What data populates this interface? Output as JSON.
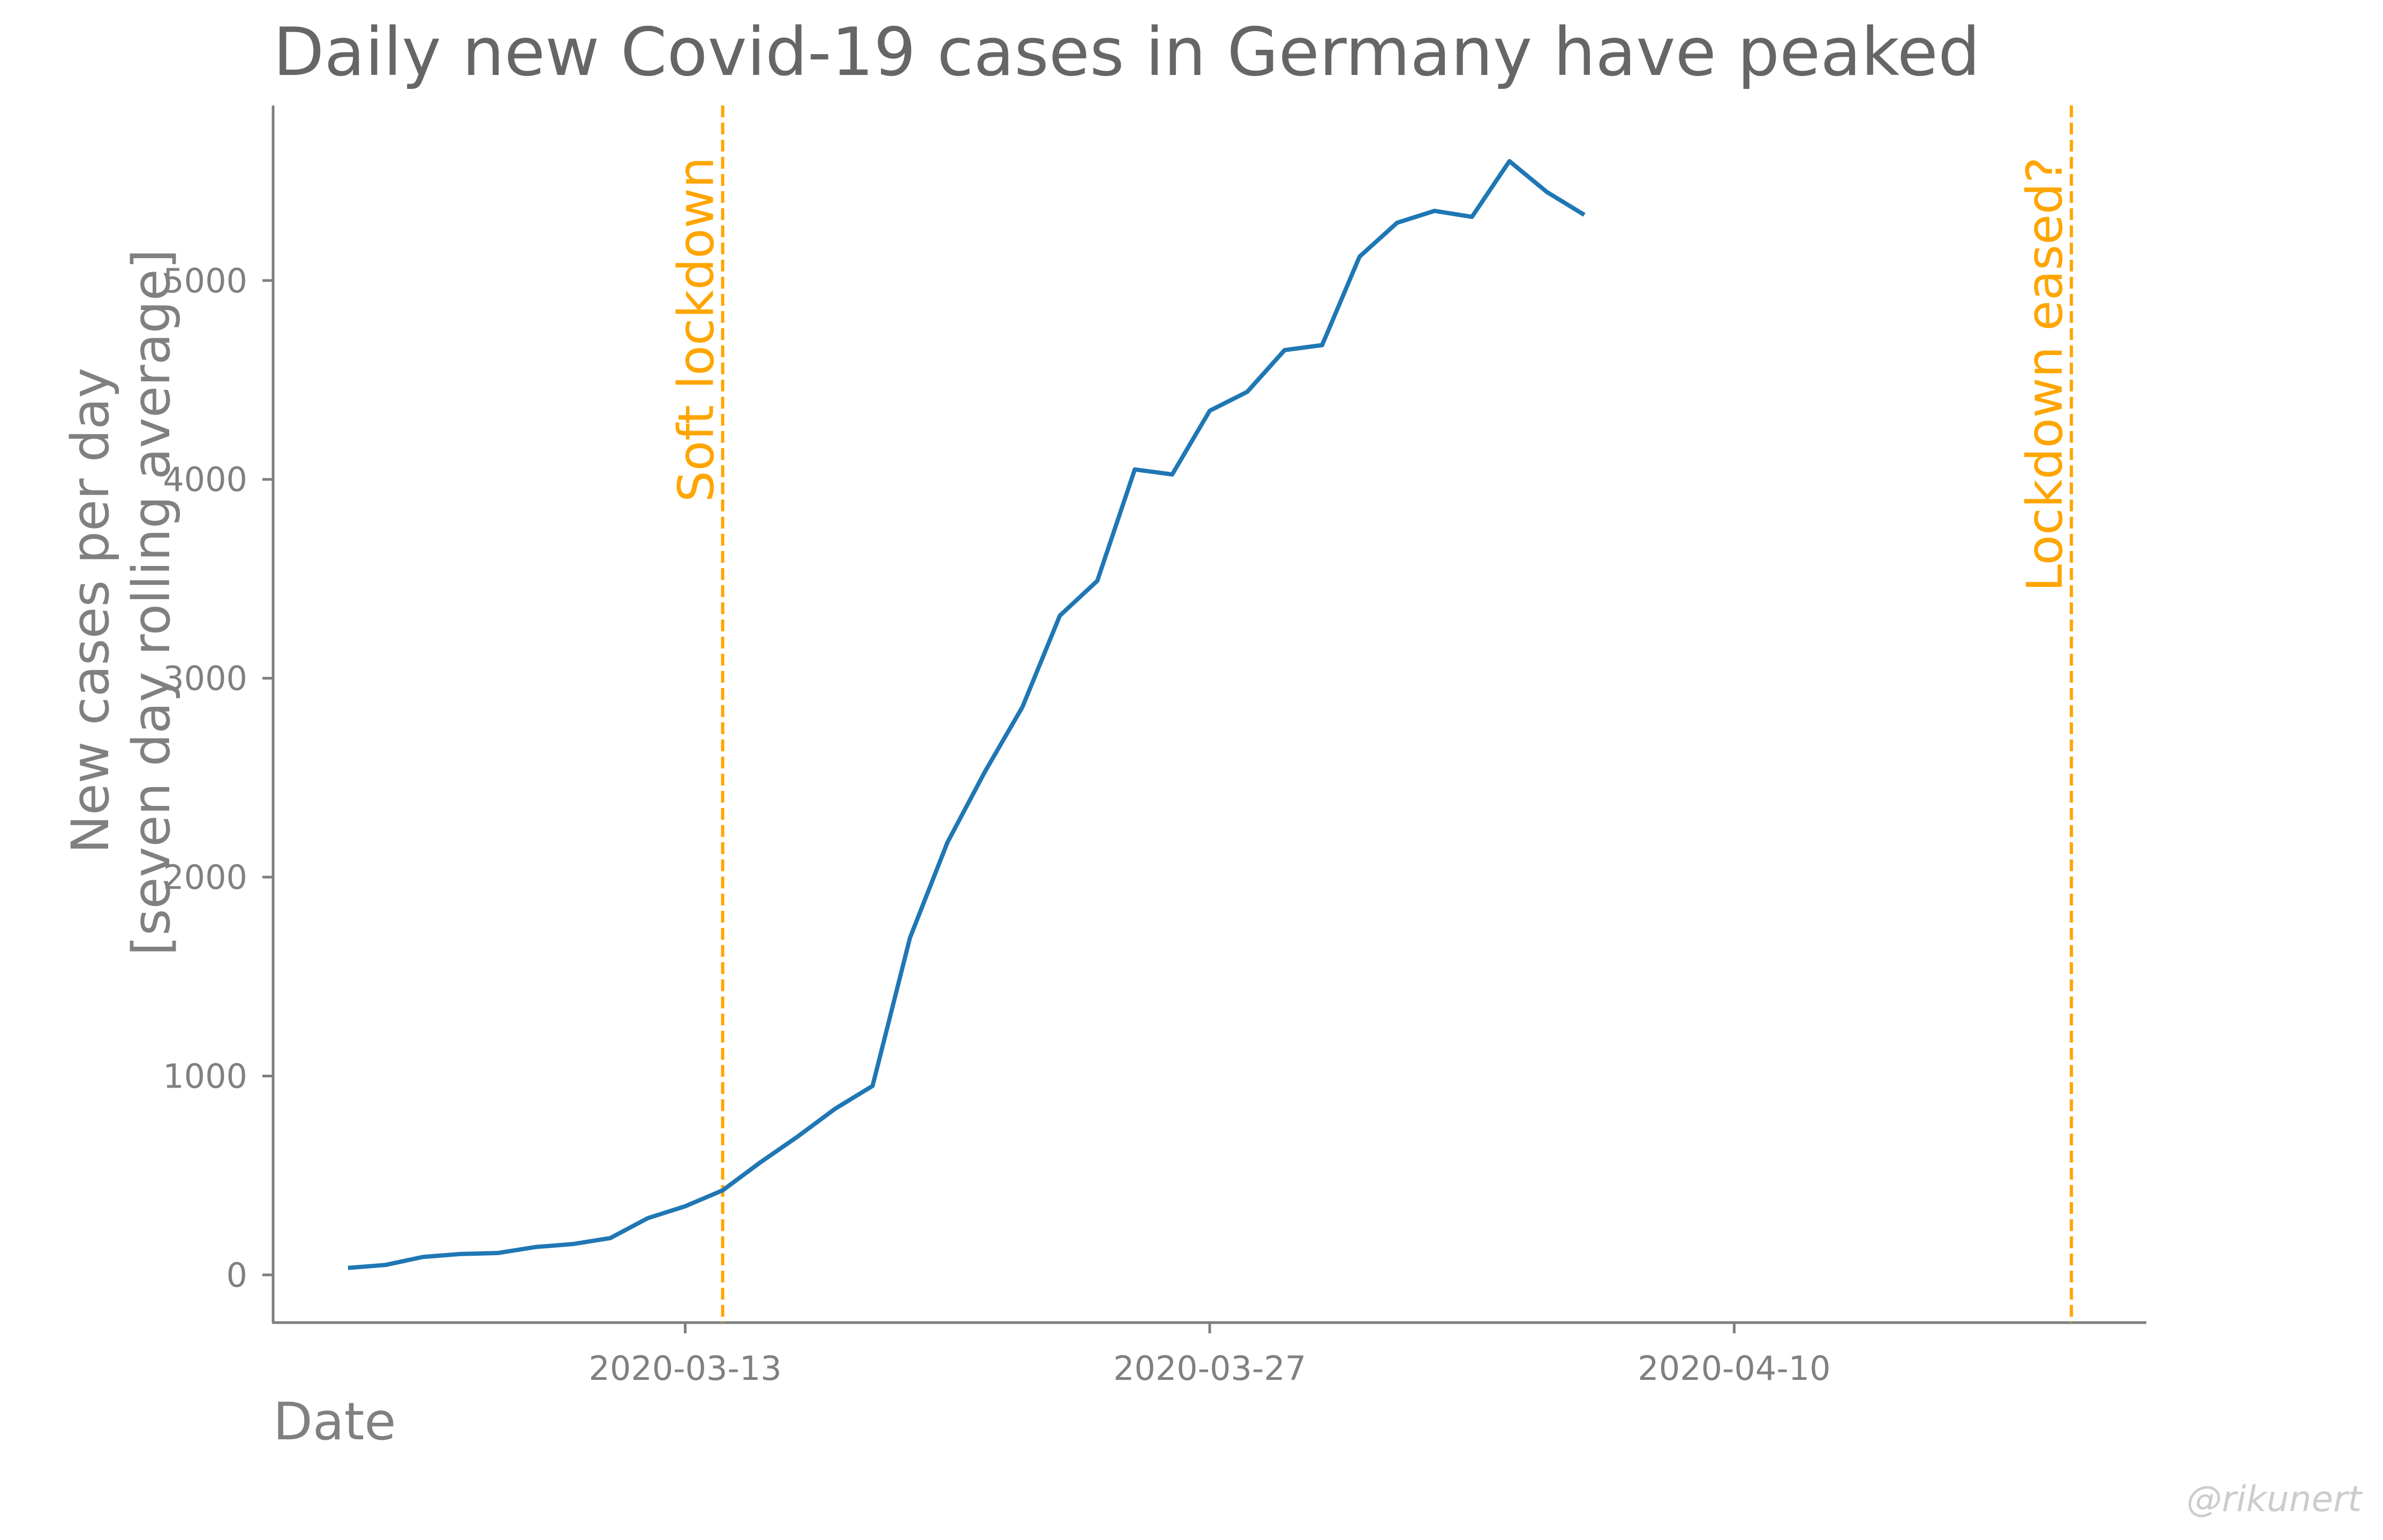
{
  "chart_data": {
    "type": "line",
    "title": "Daily new Covid-19 cases in Germany have peaked",
    "xlabel": "Date",
    "ylabel_lines": [
      "New cases per day",
      "[seven day rolling average]"
    ],
    "x_ticks": [
      "2020-03-13",
      "2020-03-27",
      "2020-04-10"
    ],
    "y_ticks": [
      0,
      1000,
      2000,
      3000,
      4000,
      5000
    ],
    "xlim": [
      "2020-03-02",
      "2020-04-21"
    ],
    "ylim": [
      -240,
      5880
    ],
    "grid": false,
    "series": [
      {
        "color": "#1f77b4",
        "points": [
          {
            "x": "2020-03-04",
            "y": 35
          },
          {
            "x": "2020-03-05",
            "y": 50
          },
          {
            "x": "2020-03-06",
            "y": 90
          },
          {
            "x": "2020-03-07",
            "y": 105
          },
          {
            "x": "2020-03-08",
            "y": 110
          },
          {
            "x": "2020-03-09",
            "y": 140
          },
          {
            "x": "2020-03-10",
            "y": 155
          },
          {
            "x": "2020-03-11",
            "y": 185
          },
          {
            "x": "2020-03-12",
            "y": 285
          },
          {
            "x": "2020-03-13",
            "y": 345
          },
          {
            "x": "2020-03-14",
            "y": 425
          },
          {
            "x": "2020-03-15",
            "y": 565
          },
          {
            "x": "2020-03-16",
            "y": 695
          },
          {
            "x": "2020-03-17",
            "y": 835
          },
          {
            "x": "2020-03-18",
            "y": 950
          },
          {
            "x": "2020-03-19",
            "y": 1695
          },
          {
            "x": "2020-03-20",
            "y": 2175
          },
          {
            "x": "2020-03-21",
            "y": 2530
          },
          {
            "x": "2020-03-22",
            "y": 2855
          },
          {
            "x": "2020-03-23",
            "y": 3315
          },
          {
            "x": "2020-03-24",
            "y": 3490
          },
          {
            "x": "2020-03-25",
            "y": 4050
          },
          {
            "x": "2020-03-26",
            "y": 4025
          },
          {
            "x": "2020-03-27",
            "y": 4345
          },
          {
            "x": "2020-03-28",
            "y": 4440
          },
          {
            "x": "2020-03-29",
            "y": 4650
          },
          {
            "x": "2020-03-30",
            "y": 4675
          },
          {
            "x": "2020-03-31",
            "y": 5120
          },
          {
            "x": "2020-04-01",
            "y": 5290
          },
          {
            "x": "2020-04-02",
            "y": 5350
          },
          {
            "x": "2020-04-03",
            "y": 5320
          },
          {
            "x": "2020-04-04",
            "y": 5600
          },
          {
            "x": "2020-04-05",
            "y": 5445
          },
          {
            "x": "2020-04-06",
            "y": 5330
          }
        ]
      }
    ],
    "annotations": [
      {
        "x": "2020-03-14",
        "label": "Soft lockdown",
        "color": "#ffa500",
        "style": "dashed"
      },
      {
        "x": "2020-04-19",
        "label": "Lockdown eased?",
        "color": "#ffa500",
        "style": "dashed"
      }
    ]
  },
  "watermark": "@rikunert"
}
